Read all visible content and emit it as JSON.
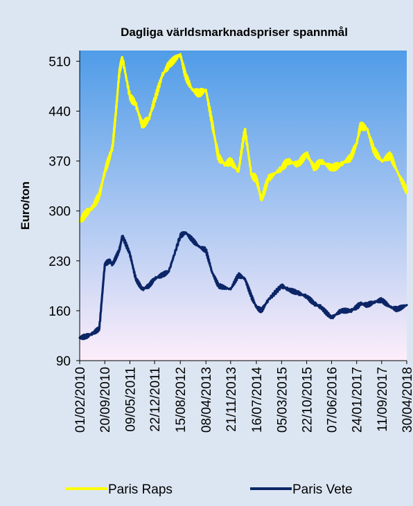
{
  "chart_data": {
    "type": "line",
    "title": "Dagliga världsmarknadspriser spannmål",
    "ylabel": "Euro/ton",
    "xlabel": "",
    "ylim": [
      90,
      525
    ],
    "yticks": [
      90,
      160,
      230,
      300,
      370,
      440,
      510
    ],
    "x_tick_labels": [
      "01/02/2010",
      "20/09/2010",
      "09/05/2011",
      "22/12/2011",
      "15/08/2012",
      "08/04/2013",
      "21/11/2013",
      "16/07/2014",
      "05/03/2015",
      "22/10/2015",
      "07/06/2016",
      "24/01/2017",
      "11/09/2017",
      "30/04/2018"
    ],
    "legend_position": "bottom",
    "plot_background": [
      "#4f9ce8",
      "#fdeefa"
    ],
    "grid": false,
    "series": [
      {
        "name": "Paris Raps",
        "color": "#ffff00",
        "x": [
          "01/02/2010",
          "01/04/2010",
          "01/06/2010",
          "01/08/2010",
          "20/09/2010",
          "01/11/2010",
          "01/12/2010",
          "01/01/2011",
          "01/02/2011",
          "01/03/2011",
          "09/05/2011",
          "01/07/2011",
          "01/09/2011",
          "01/11/2011",
          "22/12/2011",
          "01/03/2012",
          "01/05/2012",
          "15/08/2012",
          "01/10/2012",
          "01/12/2012",
          "01/02/2013",
          "08/04/2013",
          "01/06/2013",
          "01/07/2013",
          "01/08/2013",
          "01/10/2013",
          "21/11/2013",
          "01/02/2014",
          "01/04/2014",
          "01/06/2014",
          "16/07/2014",
          "01/09/2014",
          "01/11/2014",
          "05/03/2015",
          "01/05/2015",
          "01/08/2015",
          "22/10/2015",
          "01/01/2016",
          "01/03/2016",
          "07/06/2016",
          "01/09/2016",
          "01/12/2016",
          "24/01/2017",
          "01/03/2017",
          "01/05/2017",
          "01/07/2017",
          "11/09/2017",
          "01/12/2017",
          "01/02/2018",
          "30/04/2018"
        ],
        "values": [
          285,
          297,
          305,
          322,
          355,
          375,
          390,
          440,
          495,
          515,
          460,
          450,
          420,
          430,
          455,
          490,
          505,
          520,
          490,
          470,
          465,
          470,
          425,
          400,
          375,
          365,
          370,
          355,
          415,
          350,
          345,
          315,
          345,
          360,
          370,
          365,
          380,
          360,
          370,
          360,
          365,
          375,
          395,
          420,
          415,
          385,
          370,
          378,
          355,
          328
        ]
      },
      {
        "name": "Paris Vete",
        "color": "#0b2566",
        "x": [
          "01/02/2010",
          "01/04/2010",
          "01/06/2010",
          "01/08/2010",
          "20/09/2010",
          "01/11/2010",
          "01/12/2010",
          "01/02/2011",
          "01/03/2011",
          "09/05/2011",
          "01/07/2011",
          "01/09/2011",
          "01/11/2011",
          "22/12/2011",
          "01/03/2012",
          "01/05/2012",
          "15/08/2012",
          "01/10/2012",
          "01/12/2012",
          "01/02/2013",
          "08/04/2013",
          "01/06/2013",
          "01/08/2013",
          "21/11/2013",
          "01/02/2014",
          "01/04/2014",
          "01/06/2014",
          "16/07/2014",
          "01/09/2014",
          "01/11/2014",
          "05/03/2015",
          "01/05/2015",
          "01/08/2015",
          "22/10/2015",
          "01/01/2016",
          "01/03/2016",
          "07/06/2016",
          "01/09/2016",
          "01/12/2016",
          "24/01/2017",
          "01/03/2017",
          "01/05/2017",
          "01/07/2017",
          "11/09/2017",
          "01/12/2017",
          "01/02/2018",
          "30/04/2018"
        ],
        "values": [
          122,
          124,
          128,
          135,
          225,
          230,
          225,
          245,
          265,
          240,
          205,
          190,
          195,
          205,
          210,
          215,
          265,
          270,
          260,
          250,
          245,
          215,
          195,
          190,
          210,
          205,
          180,
          165,
          160,
          175,
          195,
          190,
          185,
          180,
          170,
          165,
          150,
          160,
          160,
          165,
          170,
          168,
          172,
          175,
          165,
          162,
          168
        ]
      }
    ]
  }
}
